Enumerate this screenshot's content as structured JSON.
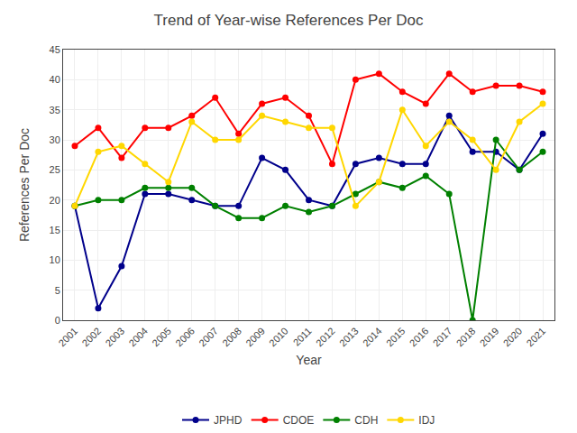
{
  "chart_data": {
    "type": "line",
    "title": "Trend of Year-wise References Per Doc",
    "xlabel": "Year",
    "ylabel": "References Per Doc",
    "x": [
      2001,
      2002,
      2003,
      2004,
      2005,
      2006,
      2007,
      2008,
      2009,
      2010,
      2011,
      2012,
      2013,
      2014,
      2015,
      2016,
      2017,
      2018,
      2019,
      2020,
      2021
    ],
    "series": [
      {
        "name": "JPHD",
        "color": "#00008B",
        "values": [
          19,
          2,
          9,
          21,
          21,
          20,
          19,
          19,
          27,
          25,
          20,
          19,
          26,
          27,
          26,
          26,
          34,
          28,
          28,
          25,
          31
        ]
      },
      {
        "name": "CDOE",
        "color": "#ff0000",
        "values": [
          29,
          32,
          27,
          32,
          32,
          34,
          37,
          31,
          36,
          37,
          34,
          26,
          40,
          41,
          38,
          36,
          41,
          38,
          39,
          39,
          38
        ]
      },
      {
        "name": "CDH",
        "color": "#008000",
        "values": [
          19,
          20,
          20,
          22,
          22,
          22,
          19,
          17,
          17,
          19,
          18,
          19,
          21,
          23,
          22,
          24,
          21,
          0,
          30,
          25,
          28
        ]
      },
      {
        "name": "IDJ",
        "color": "#FFD700",
        "values": [
          19,
          28,
          29,
          26,
          23,
          33,
          30,
          30,
          34,
          33,
          32,
          32,
          19,
          23,
          35,
          29,
          33,
          30,
          25,
          33,
          36
        ]
      }
    ],
    "xlim": [
      2000.5,
      2021.5
    ],
    "xticks": [
      2001,
      2002,
      2003,
      2004,
      2005,
      2006,
      2007,
      2008,
      2009,
      2010,
      2011,
      2012,
      2013,
      2014,
      2015,
      2016,
      2017,
      2018,
      2019,
      2020,
      2021
    ],
    "ylim": [
      0,
      45
    ],
    "yticks": [
      0,
      5,
      10,
      15,
      20,
      25,
      30,
      35,
      40,
      45
    ],
    "grid": true,
    "legend": "bottom",
    "marker": "circle",
    "line_style": "solid"
  }
}
